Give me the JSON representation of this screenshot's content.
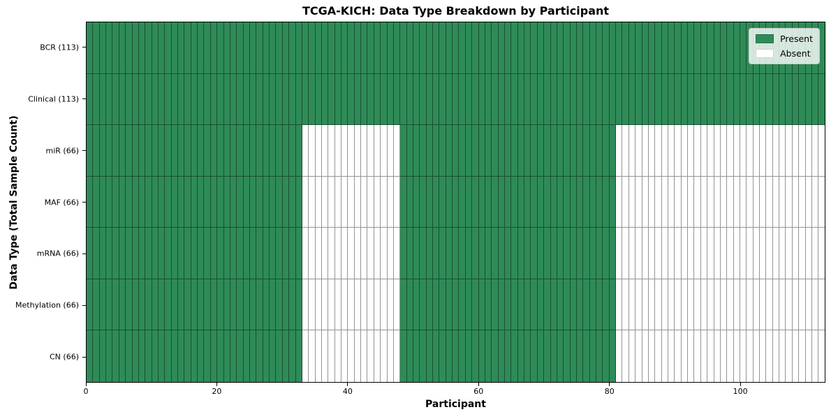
{
  "chart_data": {
    "type": "heatmap",
    "title": "TCGA-KICH: Data Type Breakdown by Participant",
    "xlabel": "Participant",
    "ylabel": "Data Type (Total Sample Count)",
    "x_ticks": [
      0,
      20,
      40,
      60,
      80,
      100
    ],
    "x_range": [
      0,
      113
    ],
    "n_participants": 113,
    "present_color": "#2e8b57",
    "absent_color": "#ffffff",
    "grid_edge_color": "rgba(0,0,0,0.42)",
    "legend": {
      "position": "upper-right",
      "entries": [
        {
          "label": "Present",
          "color": "#2e8b57"
        },
        {
          "label": "Absent",
          "color": "#ffffff"
        }
      ]
    },
    "rows": [
      {
        "label": "BCR (113)",
        "data_type": "BCR",
        "total_samples": 113,
        "present_segments": [
          [
            0,
            113
          ]
        ]
      },
      {
        "label": "Clinical (113)",
        "data_type": "Clinical",
        "total_samples": 113,
        "present_segments": [
          [
            0,
            113
          ]
        ]
      },
      {
        "label": "miR (66)",
        "data_type": "miR",
        "total_samples": 66,
        "present_segments": [
          [
            0,
            33
          ],
          [
            48,
            81
          ]
        ]
      },
      {
        "label": "MAF (66)",
        "data_type": "MAF",
        "total_samples": 66,
        "present_segments": [
          [
            0,
            33
          ],
          [
            48,
            81
          ]
        ]
      },
      {
        "label": "mRNA (66)",
        "data_type": "mRNA",
        "total_samples": 66,
        "present_segments": [
          [
            0,
            33
          ],
          [
            48,
            81
          ]
        ]
      },
      {
        "label": "Methylation (66)",
        "data_type": "Methylation",
        "total_samples": 66,
        "present_segments": [
          [
            0,
            33
          ],
          [
            48,
            81
          ]
        ]
      },
      {
        "label": "CN (66)",
        "data_type": "CN",
        "total_samples": 66,
        "present_segments": [
          [
            0,
            33
          ],
          [
            48,
            81
          ]
        ]
      }
    ]
  }
}
